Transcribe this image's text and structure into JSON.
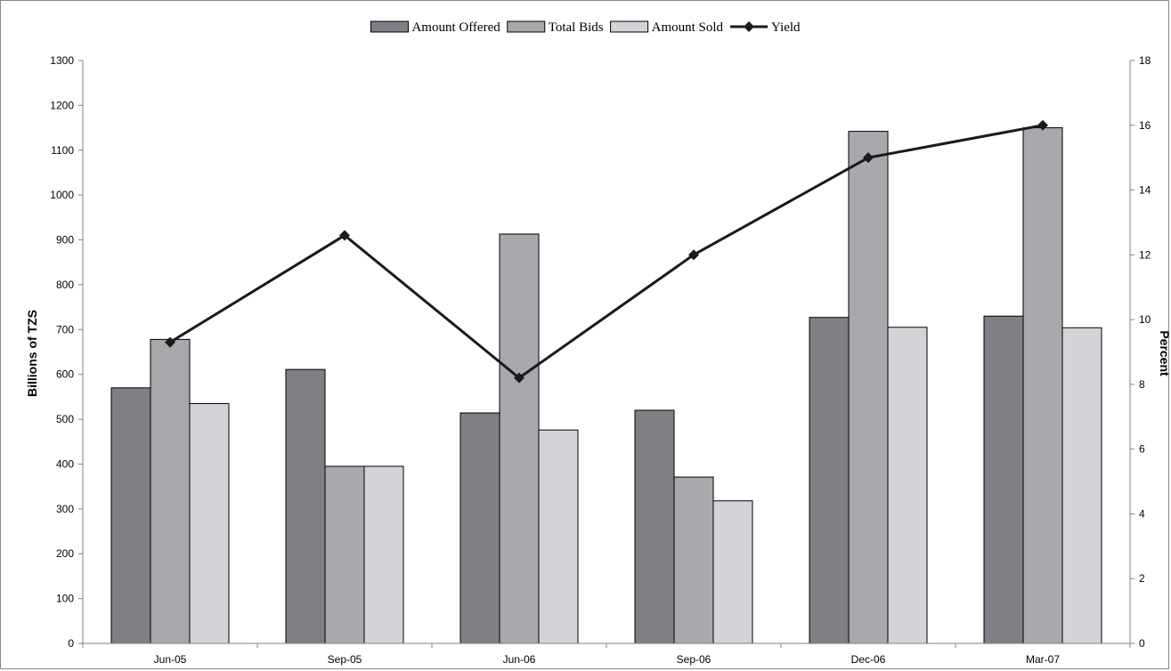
{
  "chart_data": {
    "type": "bar",
    "categories": [
      "Jun-05",
      "Sep-05",
      "Jun-06",
      "Sep-06",
      "Dec-06",
      "Mar-07"
    ],
    "series": [
      {
        "name": "Amount Offered",
        "type": "bar",
        "axis": "left",
        "color": "#7f7f85",
        "values": [
          570,
          611,
          514,
          520,
          727,
          730
        ]
      },
      {
        "name": "Total Bids",
        "type": "bar",
        "axis": "left",
        "color": "#a8a8ad",
        "values": [
          678,
          395,
          913,
          371,
          1142,
          1150
        ]
      },
      {
        "name": "Amount Sold",
        "type": "bar",
        "axis": "left",
        "color": "#d4d4d8",
        "values": [
          535,
          395,
          476,
          318,
          705,
          704
        ]
      },
      {
        "name": "Yield",
        "type": "line",
        "axis": "right",
        "color": "#1a1a1a",
        "marker": "diamond",
        "values": [
          9.3,
          12.6,
          8.2,
          12.0,
          15.0,
          16.0
        ]
      }
    ],
    "ylabel": "Billions of TZS",
    "ylim": [
      0,
      1300
    ],
    "yticks": [
      0,
      100,
      200,
      300,
      400,
      500,
      600,
      700,
      800,
      900,
      1000,
      1100,
      1200,
      1300
    ],
    "y2label": "Percent",
    "y2lim": [
      0,
      18
    ],
    "y2ticks": [
      0,
      2,
      4,
      6,
      8,
      10,
      12,
      14,
      16,
      18
    ],
    "grid": false,
    "legend_position": "top-center"
  }
}
